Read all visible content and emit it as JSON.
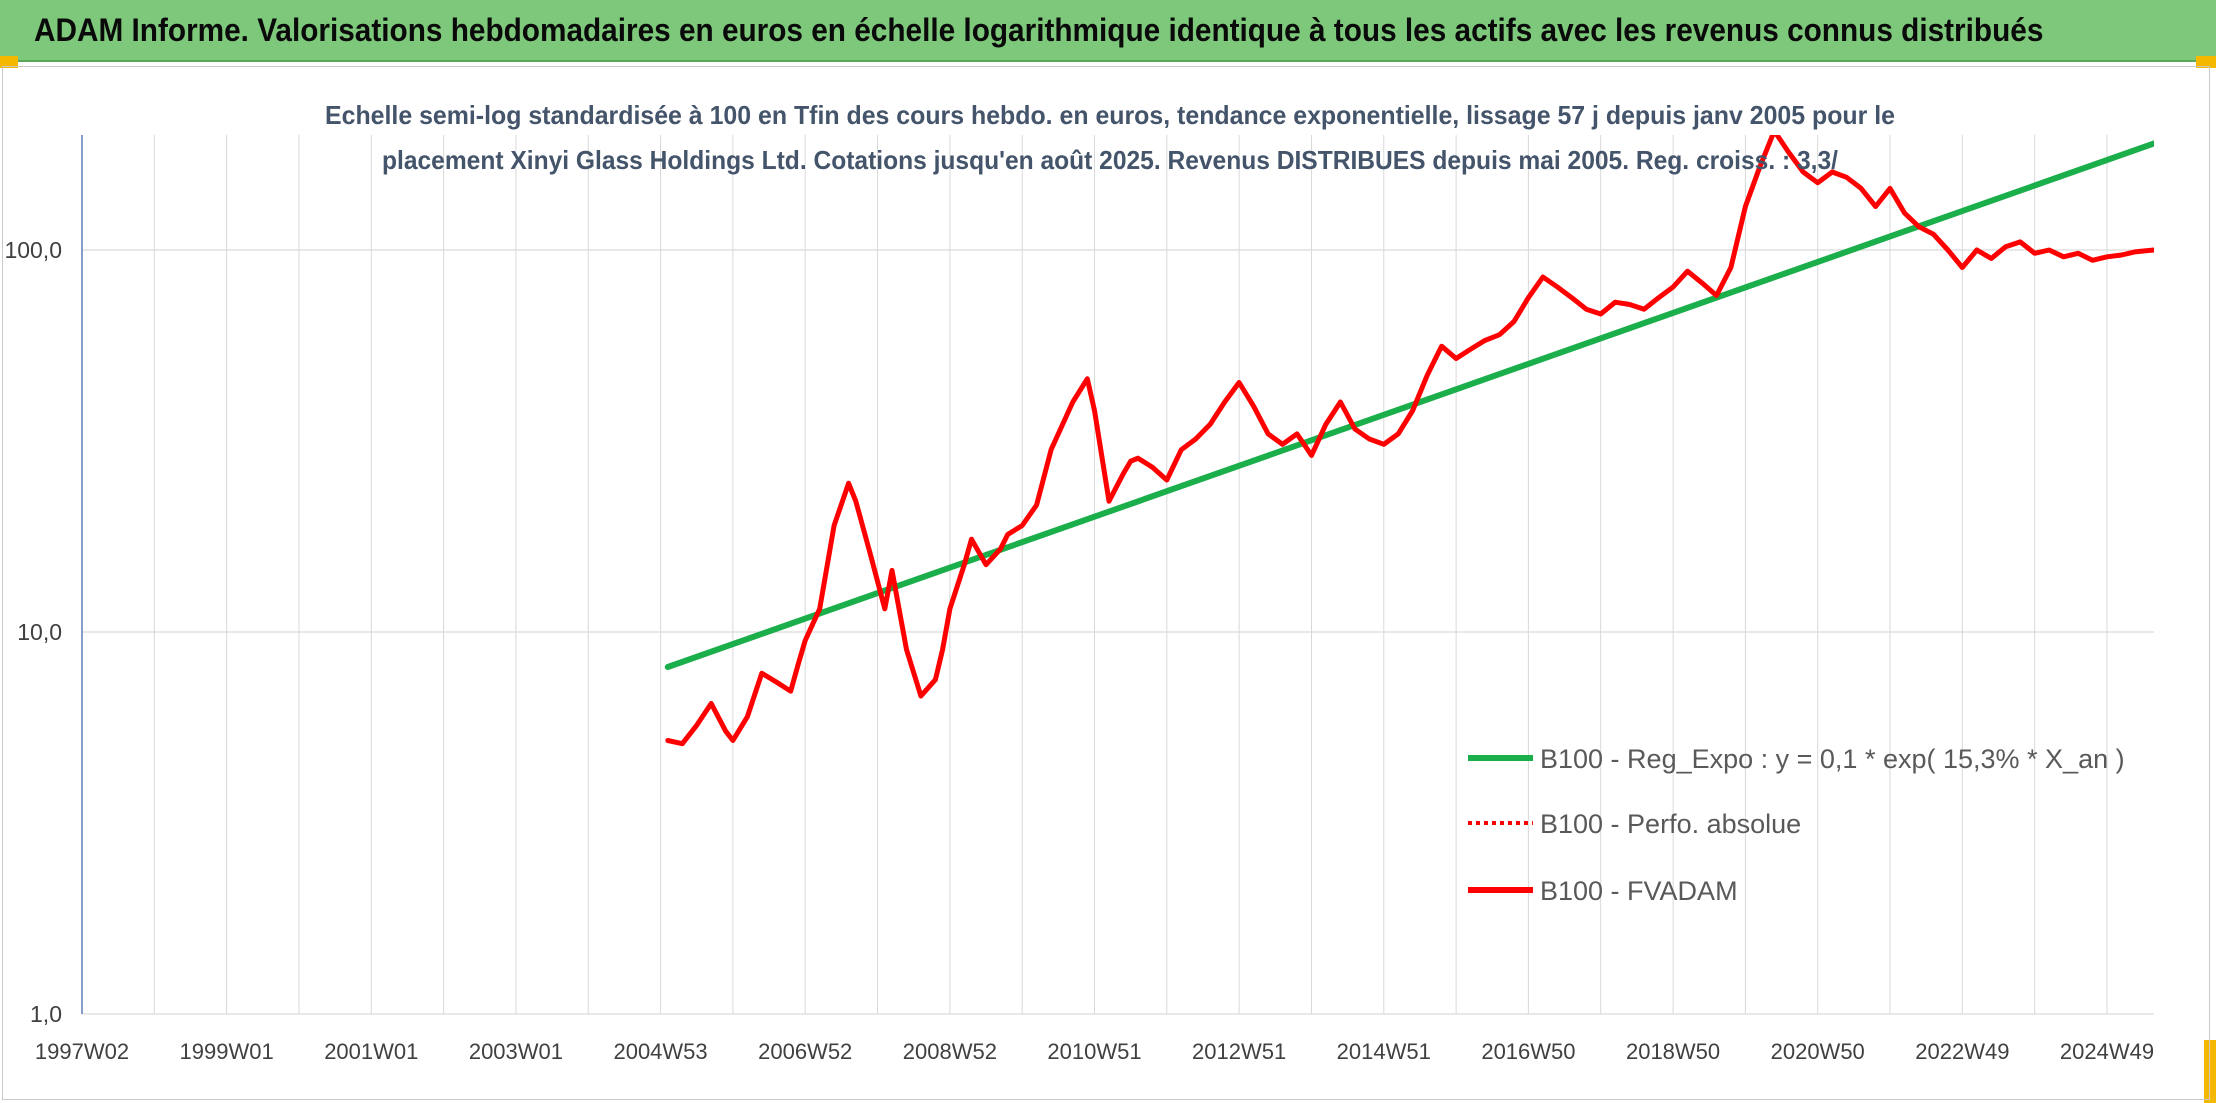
{
  "header": {
    "title": "ADAM Informe. Valorisations hebdomadaires en euros en échelle logarithmique identique à tous les actifs avec les revenus connus distribués"
  },
  "colors": {
    "banner": "#7dc87a",
    "corner": "#f5b800",
    "fvadam": "#ff0000",
    "regression": "#1aaf4b",
    "grid": "#d9d9d9",
    "axis_text": "#404040",
    "title_text": "#44546a"
  },
  "chart_data": {
    "type": "line",
    "scale": "log",
    "title_lines": [
      "Echelle semi-log standardisée à 100 en Tfin des cours hebdo. en euros, tendance exponentielle, lissage 57 j depuis janv 2005 pour le",
      "placement Xinyi Glass Holdings Ltd. Cotations jusqu'en août 2025. Revenus DISTRIBUES depuis mai 2005. Reg. croiss. : 3,3/"
    ],
    "x_range": [
      1997.0,
      2025.65
    ],
    "y_range": [
      1,
      200
    ],
    "x_ticks": [
      {
        "label": "1997W02",
        "x": 1997.0
      },
      {
        "label": "1999W01",
        "x": 1999.0
      },
      {
        "label": "2001W01",
        "x": 2001.0
      },
      {
        "label": "2003W01",
        "x": 2003.0
      },
      {
        "label": "2004W53",
        "x": 2005.0
      },
      {
        "label": "2006W52",
        "x": 2007.0
      },
      {
        "label": "2008W52",
        "x": 2009.0
      },
      {
        "label": "2010W51",
        "x": 2011.0
      },
      {
        "label": "2012W51",
        "x": 2013.0
      },
      {
        "label": "2014W51",
        "x": 2015.0
      },
      {
        "label": "2016W50",
        "x": 2017.0
      },
      {
        "label": "2018W50",
        "x": 2019.0
      },
      {
        "label": "2020W50",
        "x": 2021.0
      },
      {
        "label": "2022W49",
        "x": 2023.0
      },
      {
        "label": "2024W49",
        "x": 2025.0
      }
    ],
    "y_ticks": [
      {
        "label": "1,0",
        "value": 1
      },
      {
        "label": "10,0",
        "value": 10
      },
      {
        "label": "100,0",
        "value": 100
      }
    ],
    "grid": true,
    "legend_position": "bottom-right",
    "legend": [
      {
        "label": "B100 - Reg_Expo : y = 0,1 * exp( 15,3% *  X_an )",
        "style": "solid-green"
      },
      {
        "label": "B100 - Perfo. absolue",
        "style": "dotted-red"
      },
      {
        "label": "B100 - FVADAM",
        "style": "solid-red"
      }
    ],
    "series": [
      {
        "key": "regression",
        "x": [
          2005.1,
          2025.65
        ],
        "y": [
          8.1,
          190
        ]
      },
      {
        "key": "fvadam",
        "x": [
          2005.1,
          2005.3,
          2005.5,
          2005.7,
          2005.9,
          2006.0,
          2006.2,
          2006.4,
          2006.6,
          2006.8,
          2006.9,
          2007.0,
          2007.2,
          2007.4,
          2007.6,
          2007.7,
          2007.9,
          2008.1,
          2008.2,
          2008.4,
          2008.6,
          2008.8,
          2008.9,
          2009.0,
          2009.2,
          2009.3,
          2009.5,
          2009.7,
          2009.8,
          2010.0,
          2010.2,
          2010.4,
          2010.5,
          2010.7,
          2010.9,
          2011.0,
          2011.2,
          2011.4,
          2011.5,
          2011.6,
          2011.8,
          2012.0,
          2012.2,
          2012.4,
          2012.6,
          2012.8,
          2013.0,
          2013.2,
          2013.4,
          2013.6,
          2013.8,
          2014.0,
          2014.2,
          2014.4,
          2014.6,
          2014.8,
          2015.0,
          2015.2,
          2015.4,
          2015.6,
          2015.8,
          2016.0,
          2016.2,
          2016.4,
          2016.6,
          2016.8,
          2017.0,
          2017.2,
          2017.4,
          2017.6,
          2017.8,
          2018.0,
          2018.2,
          2018.4,
          2018.6,
          2018.8,
          2019.0,
          2019.2,
          2019.4,
          2019.6,
          2019.8,
          2020.0,
          2020.2,
          2020.4,
          2020.6,
          2020.8,
          2021.0,
          2021.2,
          2021.4,
          2021.6,
          2021.8,
          2022.0,
          2022.2,
          2022.4,
          2022.6,
          2022.8,
          2023.0,
          2023.2,
          2023.4,
          2023.6,
          2023.8,
          2024.0,
          2024.2,
          2024.4,
          2024.6,
          2024.8,
          2025.0,
          2025.2,
          2025.4,
          2025.65
        ],
        "y": [
          5.2,
          5.1,
          5.7,
          6.5,
          5.5,
          5.2,
          6.0,
          7.8,
          7.4,
          7.0,
          8.2,
          9.5,
          11.5,
          19.0,
          24.5,
          22.0,
          16.0,
          11.5,
          14.5,
          9.0,
          6.8,
          7.5,
          9.0,
          11.5,
          15.0,
          17.5,
          15.0,
          16.5,
          18.0,
          19.0,
          21.5,
          30.0,
          33.0,
          40.0,
          46.0,
          38.0,
          22.0,
          26.0,
          28.0,
          28.5,
          27.0,
          25.0,
          30.0,
          32.0,
          35.0,
          40.0,
          45.0,
          39.0,
          33.0,
          31.0,
          33.0,
          29.0,
          35.0,
          40.0,
          34.0,
          32.0,
          31.0,
          33.0,
          38.0,
          47.0,
          56.0,
          52.0,
          55.0,
          58.0,
          60.0,
          65.0,
          75.0,
          85.0,
          80.0,
          75.0,
          70.0,
          68.0,
          73.0,
          72.0,
          70.0,
          75.0,
          80.0,
          88.0,
          82.0,
          76.0,
          90.0,
          130.0,
          165.0,
          205.0,
          180.0,
          160.0,
          150.0,
          160.0,
          155.0,
          145.0,
          130.0,
          145.0,
          125.0,
          115.0,
          110.0,
          100.0,
          90.0,
          100.0,
          95.0,
          102.0,
          105.0,
          98.0,
          100.0,
          96.0,
          98.0,
          94.0,
          96.0,
          97.0,
          99.0,
          100.0
        ]
      }
    ]
  }
}
